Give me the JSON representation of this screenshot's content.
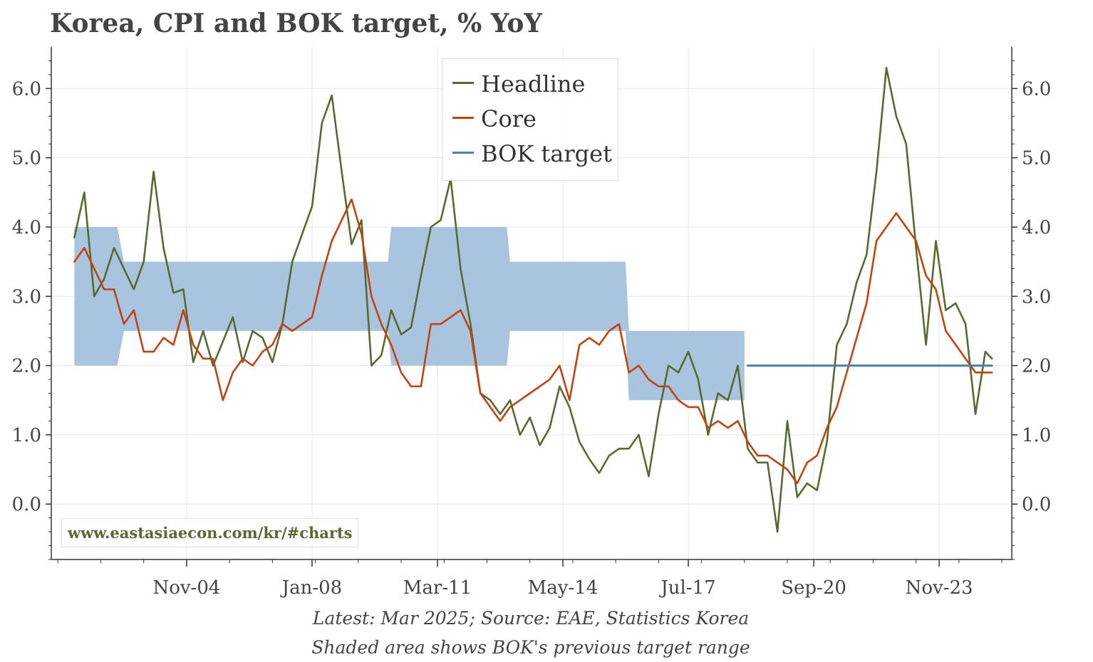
{
  "colors": {
    "headline": "#556b2f",
    "core": "#c0440f",
    "bok_target": "#4a7fb0",
    "previous_range_fill": "#a9c4de",
    "grid": "#e6e6e6",
    "axis": "#333333"
  },
  "chart_data": {
    "type": "line",
    "title": "Korea, CPI and BOK target, % YoY",
    "xlabel": "",
    "ylabel": "",
    "x_range": [
      "2001-06",
      "2025-09"
    ],
    "ylim": [
      -0.8,
      6.6
    ],
    "y_ticks": [
      0.0,
      1.0,
      2.0,
      3.0,
      4.0,
      5.0,
      6.0
    ],
    "y_tick_labels": [
      "0.0",
      "1.0",
      "2.0",
      "3.0",
      "4.0",
      "5.0",
      "6.0"
    ],
    "x_ticks": [
      "2004-11",
      "2008-01",
      "2011-03",
      "2014-05",
      "2017-07",
      "2020-09",
      "2023-11"
    ],
    "x_tick_labels": [
      "Nov-04",
      "Jan-08",
      "Mar-11",
      "May-14",
      "Jul-17",
      "Sep-20",
      "Nov-23"
    ],
    "grid": true,
    "legend_position": "top-center",
    "series": [
      {
        "name": "Headline",
        "points": [
          [
            "2002-01",
            3.85
          ],
          [
            "2002-04",
            4.5
          ],
          [
            "2002-07",
            3.0
          ],
          [
            "2002-10",
            3.25
          ],
          [
            "2003-01",
            3.7
          ],
          [
            "2003-04",
            3.4
          ],
          [
            "2003-07",
            3.1
          ],
          [
            "2003-10",
            3.5
          ],
          [
            "2004-01",
            4.8
          ],
          [
            "2004-04",
            3.7
          ],
          [
            "2004-07",
            3.05
          ],
          [
            "2004-10",
            3.1
          ],
          [
            "2005-01",
            2.05
          ],
          [
            "2005-04",
            2.5
          ],
          [
            "2005-07",
            2.0
          ],
          [
            "2005-10",
            2.35
          ],
          [
            "2006-01",
            2.7
          ],
          [
            "2006-04",
            2.05
          ],
          [
            "2006-07",
            2.5
          ],
          [
            "2006-10",
            2.4
          ],
          [
            "2007-01",
            2.05
          ],
          [
            "2007-04",
            2.6
          ],
          [
            "2007-07",
            3.5
          ],
          [
            "2007-10",
            3.9
          ],
          [
            "2008-01",
            4.3
          ],
          [
            "2008-04",
            5.5
          ],
          [
            "2008-07",
            5.9
          ],
          [
            "2008-10",
            4.8
          ],
          [
            "2009-01",
            3.75
          ],
          [
            "2009-04",
            4.1
          ],
          [
            "2009-07",
            2.0
          ],
          [
            "2009-10",
            2.15
          ],
          [
            "2010-01",
            2.8
          ],
          [
            "2010-04",
            2.45
          ],
          [
            "2010-07",
            2.55
          ],
          [
            "2010-10",
            3.3
          ],
          [
            "2011-01",
            4.0
          ],
          [
            "2011-04",
            4.1
          ],
          [
            "2011-07",
            4.7
          ],
          [
            "2011-10",
            3.4
          ],
          [
            "2012-01",
            2.6
          ],
          [
            "2012-04",
            1.6
          ],
          [
            "2012-07",
            1.5
          ],
          [
            "2012-10",
            1.3
          ],
          [
            "2013-01",
            1.5
          ],
          [
            "2013-04",
            1.0
          ],
          [
            "2013-07",
            1.25
          ],
          [
            "2013-10",
            0.85
          ],
          [
            "2014-01",
            1.1
          ],
          [
            "2014-04",
            1.7
          ],
          [
            "2014-07",
            1.4
          ],
          [
            "2014-10",
            0.9
          ],
          [
            "2015-01",
            0.65
          ],
          [
            "2015-04",
            0.45
          ],
          [
            "2015-07",
            0.7
          ],
          [
            "2015-10",
            0.8
          ],
          [
            "2016-01",
            0.8
          ],
          [
            "2016-04",
            1.0
          ],
          [
            "2016-07",
            0.4
          ],
          [
            "2016-10",
            1.3
          ],
          [
            "2017-01",
            2.0
          ],
          [
            "2017-04",
            1.9
          ],
          [
            "2017-07",
            2.2
          ],
          [
            "2017-10",
            1.8
          ],
          [
            "2018-01",
            1.0
          ],
          [
            "2018-04",
            1.6
          ],
          [
            "2018-07",
            1.5
          ],
          [
            "2018-10",
            2.0
          ],
          [
            "2019-01",
            0.8
          ],
          [
            "2019-04",
            0.6
          ],
          [
            "2019-07",
            0.6
          ],
          [
            "2019-10",
            -0.4
          ],
          [
            "2020-01",
            1.2
          ],
          [
            "2020-04",
            0.1
          ],
          [
            "2020-07",
            0.3
          ],
          [
            "2020-10",
            0.2
          ],
          [
            "2021-01",
            0.9
          ],
          [
            "2021-04",
            2.3
          ],
          [
            "2021-07",
            2.6
          ],
          [
            "2021-10",
            3.2
          ],
          [
            "2022-01",
            3.6
          ],
          [
            "2022-04",
            4.8
          ],
          [
            "2022-07",
            6.3
          ],
          [
            "2022-10",
            5.6
          ],
          [
            "2023-01",
            5.2
          ],
          [
            "2023-04",
            3.7
          ],
          [
            "2023-07",
            2.3
          ],
          [
            "2023-10",
            3.8
          ],
          [
            "2024-01",
            2.8
          ],
          [
            "2024-04",
            2.9
          ],
          [
            "2024-07",
            2.6
          ],
          [
            "2024-10",
            1.3
          ],
          [
            "2025-01",
            2.2
          ],
          [
            "2025-03",
            2.1
          ]
        ]
      },
      {
        "name": "Core",
        "points": [
          [
            "2002-01",
            3.5
          ],
          [
            "2002-04",
            3.7
          ],
          [
            "2002-07",
            3.4
          ],
          [
            "2002-10",
            3.1
          ],
          [
            "2003-01",
            3.1
          ],
          [
            "2003-04",
            2.6
          ],
          [
            "2003-07",
            2.8
          ],
          [
            "2003-10",
            2.2
          ],
          [
            "2004-01",
            2.2
          ],
          [
            "2004-04",
            2.4
          ],
          [
            "2004-07",
            2.3
          ],
          [
            "2004-10",
            2.8
          ],
          [
            "2005-01",
            2.3
          ],
          [
            "2005-04",
            2.1
          ],
          [
            "2005-07",
            2.1
          ],
          [
            "2005-10",
            1.5
          ],
          [
            "2006-01",
            1.9
          ],
          [
            "2006-04",
            2.1
          ],
          [
            "2006-07",
            2.0
          ],
          [
            "2006-10",
            2.2
          ],
          [
            "2007-01",
            2.3
          ],
          [
            "2007-04",
            2.6
          ],
          [
            "2007-07",
            2.5
          ],
          [
            "2007-10",
            2.6
          ],
          [
            "2008-01",
            2.7
          ],
          [
            "2008-04",
            3.3
          ],
          [
            "2008-07",
            3.8
          ],
          [
            "2008-10",
            4.1
          ],
          [
            "2009-01",
            4.4
          ],
          [
            "2009-04",
            3.9
          ],
          [
            "2009-07",
            3.0
          ],
          [
            "2009-10",
            2.6
          ],
          [
            "2010-01",
            2.3
          ],
          [
            "2010-04",
            1.9
          ],
          [
            "2010-07",
            1.7
          ],
          [
            "2010-10",
            1.7
          ],
          [
            "2011-01",
            2.6
          ],
          [
            "2011-04",
            2.6
          ],
          [
            "2011-07",
            2.7
          ],
          [
            "2011-10",
            2.8
          ],
          [
            "2012-01",
            2.5
          ],
          [
            "2012-04",
            1.6
          ],
          [
            "2012-07",
            1.4
          ],
          [
            "2012-10",
            1.2
          ],
          [
            "2013-01",
            1.4
          ],
          [
            "2013-04",
            1.5
          ],
          [
            "2013-07",
            1.6
          ],
          [
            "2013-10",
            1.7
          ],
          [
            "2014-01",
            1.8
          ],
          [
            "2014-04",
            2.0
          ],
          [
            "2014-07",
            1.5
          ],
          [
            "2014-10",
            2.3
          ],
          [
            "2015-01",
            2.4
          ],
          [
            "2015-04",
            2.3
          ],
          [
            "2015-07",
            2.5
          ],
          [
            "2015-10",
            2.6
          ],
          [
            "2016-01",
            1.9
          ],
          [
            "2016-04",
            2.0
          ],
          [
            "2016-07",
            1.8
          ],
          [
            "2016-10",
            1.7
          ],
          [
            "2017-01",
            1.7
          ],
          [
            "2017-04",
            1.5
          ],
          [
            "2017-07",
            1.4
          ],
          [
            "2017-10",
            1.4
          ],
          [
            "2018-01",
            1.1
          ],
          [
            "2018-04",
            1.2
          ],
          [
            "2018-07",
            1.1
          ],
          [
            "2018-10",
            1.2
          ],
          [
            "2019-01",
            0.9
          ],
          [
            "2019-04",
            0.7
          ],
          [
            "2019-07",
            0.7
          ],
          [
            "2019-10",
            0.6
          ],
          [
            "2020-01",
            0.5
          ],
          [
            "2020-04",
            0.3
          ],
          [
            "2020-07",
            0.6
          ],
          [
            "2020-10",
            0.7
          ],
          [
            "2021-01",
            1.1
          ],
          [
            "2021-04",
            1.4
          ],
          [
            "2021-07",
            1.9
          ],
          [
            "2021-10",
            2.4
          ],
          [
            "2022-01",
            2.9
          ],
          [
            "2022-04",
            3.8
          ],
          [
            "2022-07",
            4.0
          ],
          [
            "2022-10",
            4.2
          ],
          [
            "2023-01",
            4.0
          ],
          [
            "2023-04",
            3.8
          ],
          [
            "2023-07",
            3.3
          ],
          [
            "2023-10",
            3.1
          ],
          [
            "2024-01",
            2.5
          ],
          [
            "2024-04",
            2.3
          ],
          [
            "2024-07",
            2.1
          ],
          [
            "2024-10",
            1.9
          ],
          [
            "2025-01",
            1.9
          ],
          [
            "2025-03",
            1.9
          ]
        ]
      },
      {
        "name": "BOK target",
        "points": [
          [
            "2019-01",
            2.0
          ],
          [
            "2025-03",
            2.0
          ]
        ]
      }
    ],
    "shaded_area": {
      "description": "Shaded area shows BOK's previous target range",
      "segments": [
        {
          "from": "2002-01",
          "to": "2003-02",
          "low": 2.0,
          "high": 4.0
        },
        {
          "from": "2003-04",
          "to": "2009-12",
          "low": 2.5,
          "high": 3.5
        },
        {
          "from": "2010-01",
          "to": "2012-12",
          "low": 2.0,
          "high": 4.0
        },
        {
          "from": "2013-01",
          "to": "2015-12",
          "low": 2.5,
          "high": 3.5
        },
        {
          "from": "2016-01",
          "to": "2018-12",
          "low": 1.5,
          "high": 2.5
        }
      ]
    },
    "annotations": {
      "watermark": "www.eastasiaecon.com/kr/#charts",
      "footer_line1": "Latest: Mar 2025; Source: EAE, Statistics Korea",
      "footer_line2": "Shaded area shows BOK's previous target range"
    }
  }
}
